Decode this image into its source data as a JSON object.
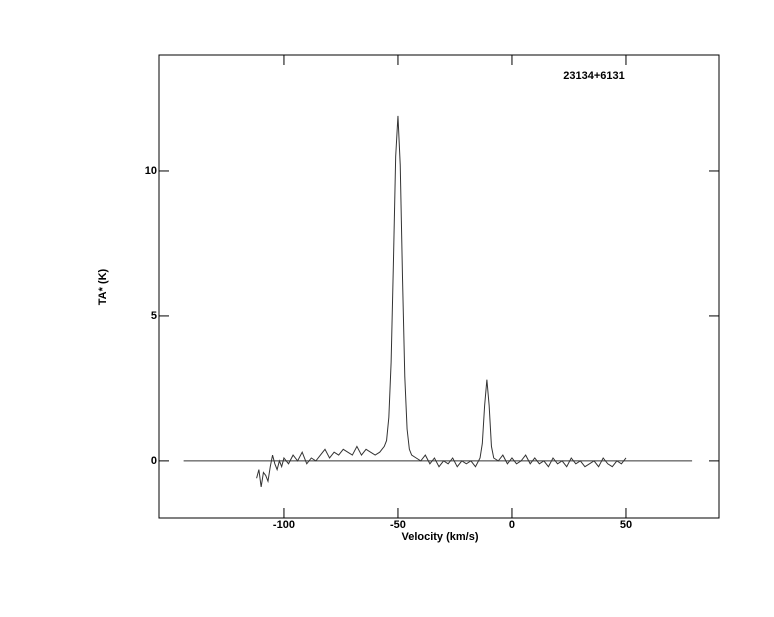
{
  "chart_data": {
    "type": "line",
    "title": "23134+6131",
    "xlabel": "Velocity (km/s)",
    "ylabel": "TA* (K)",
    "color": "#333333",
    "x": [
      -112,
      -111,
      -110,
      -109,
      -108,
      -107,
      -106,
      -105,
      -104,
      -103,
      -102,
      -101,
      -100,
      -98,
      -96,
      -94,
      -92,
      -90,
      -88,
      -86,
      -84,
      -82,
      -80,
      -78,
      -76,
      -74,
      -72,
      -70,
      -68,
      -66,
      -64,
      -62,
      -60,
      -58,
      -56,
      -55,
      -54,
      -53,
      -52,
      -51,
      -50,
      -49,
      -48,
      -47,
      -46,
      -45,
      -44,
      -42,
      -40,
      -38,
      -36,
      -34,
      -32,
      -30,
      -28,
      -26,
      -24,
      -22,
      -20,
      -18,
      -16,
      -14,
      -13,
      -12,
      -11,
      -10,
      -9,
      -8,
      -6,
      -4,
      -2,
      0,
      2,
      4,
      6,
      8,
      10,
      12,
      14,
      16,
      18,
      20,
      22,
      24,
      26,
      28,
      30,
      32,
      34,
      36,
      38,
      40,
      42,
      44,
      46,
      48,
      50
    ],
    "values": [
      -0.6,
      -0.3,
      -0.9,
      -0.4,
      -0.5,
      -0.7,
      -0.2,
      0.2,
      -0.1,
      -0.3,
      0.0,
      -0.2,
      0.1,
      -0.1,
      0.2,
      0.0,
      0.3,
      -0.1,
      0.1,
      0.0,
      0.2,
      0.4,
      0.1,
      0.3,
      0.2,
      0.4,
      0.3,
      0.2,
      0.5,
      0.2,
      0.4,
      0.3,
      0.2,
      0.3,
      0.5,
      0.7,
      1.5,
      3.4,
      6.8,
      10.5,
      11.9,
      10.2,
      6.3,
      2.9,
      1.1,
      0.4,
      0.2,
      0.1,
      0.0,
      0.2,
      -0.1,
      0.1,
      -0.2,
      0.0,
      -0.1,
      0.1,
      -0.2,
      0.0,
      -0.1,
      0.0,
      -0.2,
      0.1,
      0.6,
      1.9,
      2.8,
      1.9,
      0.5,
      0.1,
      0.0,
      0.2,
      -0.1,
      0.1,
      -0.1,
      0.0,
      0.2,
      -0.1,
      0.1,
      -0.1,
      0.0,
      -0.2,
      0.1,
      -0.1,
      0.0,
      -0.2,
      0.1,
      -0.1,
      0.0,
      -0.2,
      -0.1,
      0.0,
      -0.2,
      0.1,
      -0.1,
      -0.2,
      0.0,
      -0.1,
      0.1
    ],
    "baseline": {
      "y": 0,
      "x": [
        -144,
        79
      ]
    },
    "xlim": [
      -154.8,
      90.8
    ],
    "ylim": [
      -1.97,
      14.0
    ],
    "xticks": [
      -100,
      -50,
      0,
      50
    ],
    "yticks": [
      0,
      5,
      10
    ]
  }
}
